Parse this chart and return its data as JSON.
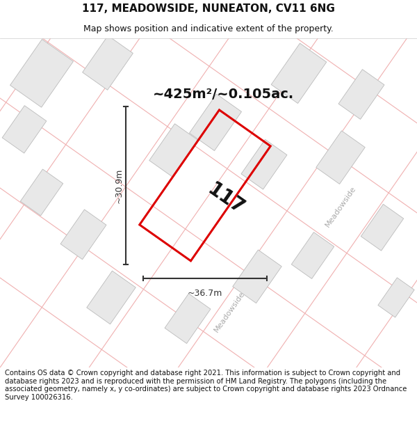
{
  "title": "117, MEADOWSIDE, NUNEATON, CV11 6NG",
  "subtitle": "Map shows position and indicative extent of the property.",
  "footer": "Contains OS data © Crown copyright and database right 2021. This information is subject to Crown copyright and database rights 2023 and is reproduced with the permission of HM Land Registry. The polygons (including the associated geometry, namely x, y co-ordinates) are subject to Crown copyright and database rights 2023 Ordnance Survey 100026316.",
  "area_label": "~425m²/~0.105ac.",
  "property_number": "117",
  "dim_width": "~36.7m",
  "dim_height": "~30.9m",
  "bg_color": "#ffffff",
  "map_bg_color": "#ffffff",
  "plot_color_fill": "none",
  "plot_color_edge": "#dd0000",
  "building_fill": "#e8e8e8",
  "building_edge": "#bbbbbb",
  "road_line_color": "#f0b0b0",
  "road_label_color": "#aaaaaa",
  "dim_color": "#333333",
  "title_fontsize": 11,
  "subtitle_fontsize": 9,
  "footer_fontsize": 7.2,
  "area_fontsize": 14,
  "prop_num_fontsize": 20,
  "dim_fontsize": 9
}
